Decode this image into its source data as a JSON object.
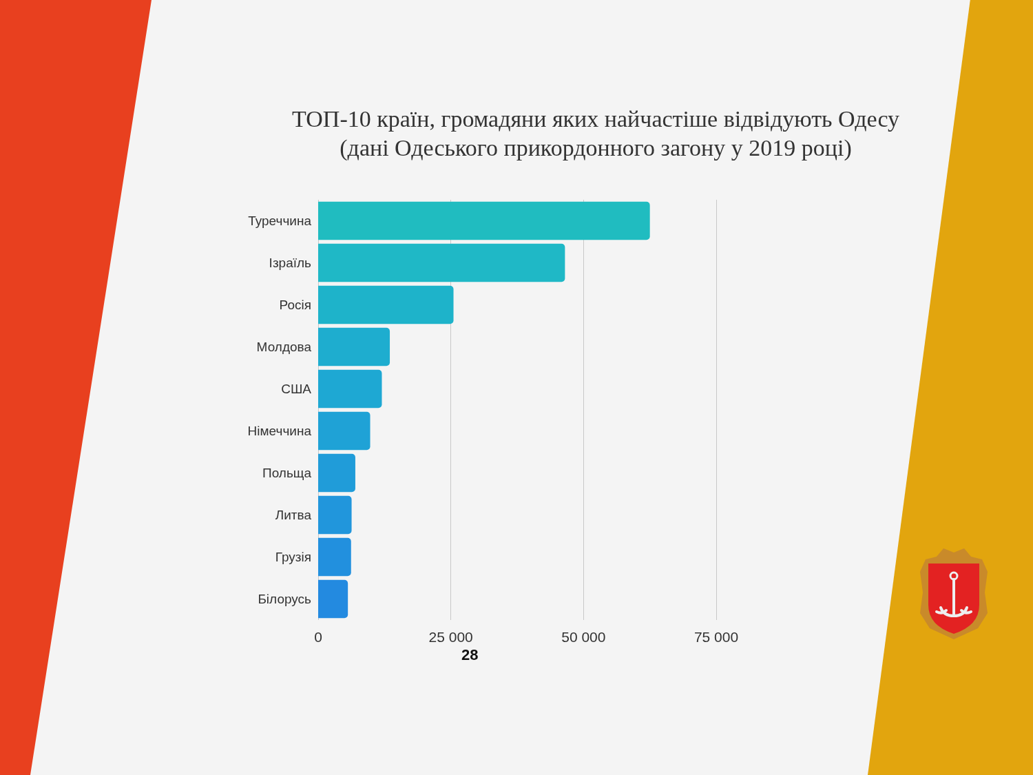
{
  "chart_data": {
    "type": "bar",
    "orientation": "horizontal",
    "title": "ТОП-10 країн, громадяни яких найчастіше відвідують Одесу",
    "subtitle": "(дані Одеського прикордонного загону у 2019 році)",
    "categories": [
      "Туреччина",
      "Ізраїль",
      "Росія",
      "Молдова",
      "США",
      "Німеччина",
      "Польща",
      "Литва",
      "Грузія",
      "Білорусь"
    ],
    "values": [
      62500,
      46500,
      25500,
      13500,
      12000,
      9800,
      7000,
      6300,
      6200,
      5600
    ],
    "colors": [
      "#20bcc0",
      "#1fb8c6",
      "#1eb3ca",
      "#1eadcf",
      "#1ea8d3",
      "#1fa2d6",
      "#209cd9",
      "#2196dc",
      "#2290de",
      "#238ae0"
    ],
    "xlim": [
      0,
      75000
    ],
    "xticks": [
      0,
      {
        "value": 25000,
        "label": "25 000"
      },
      {
        "value": 50000,
        "label": "50 000"
      },
      {
        "value": 75000,
        "label": "75 000"
      }
    ],
    "grid": "x",
    "annotations": [
      "28"
    ]
  }
}
